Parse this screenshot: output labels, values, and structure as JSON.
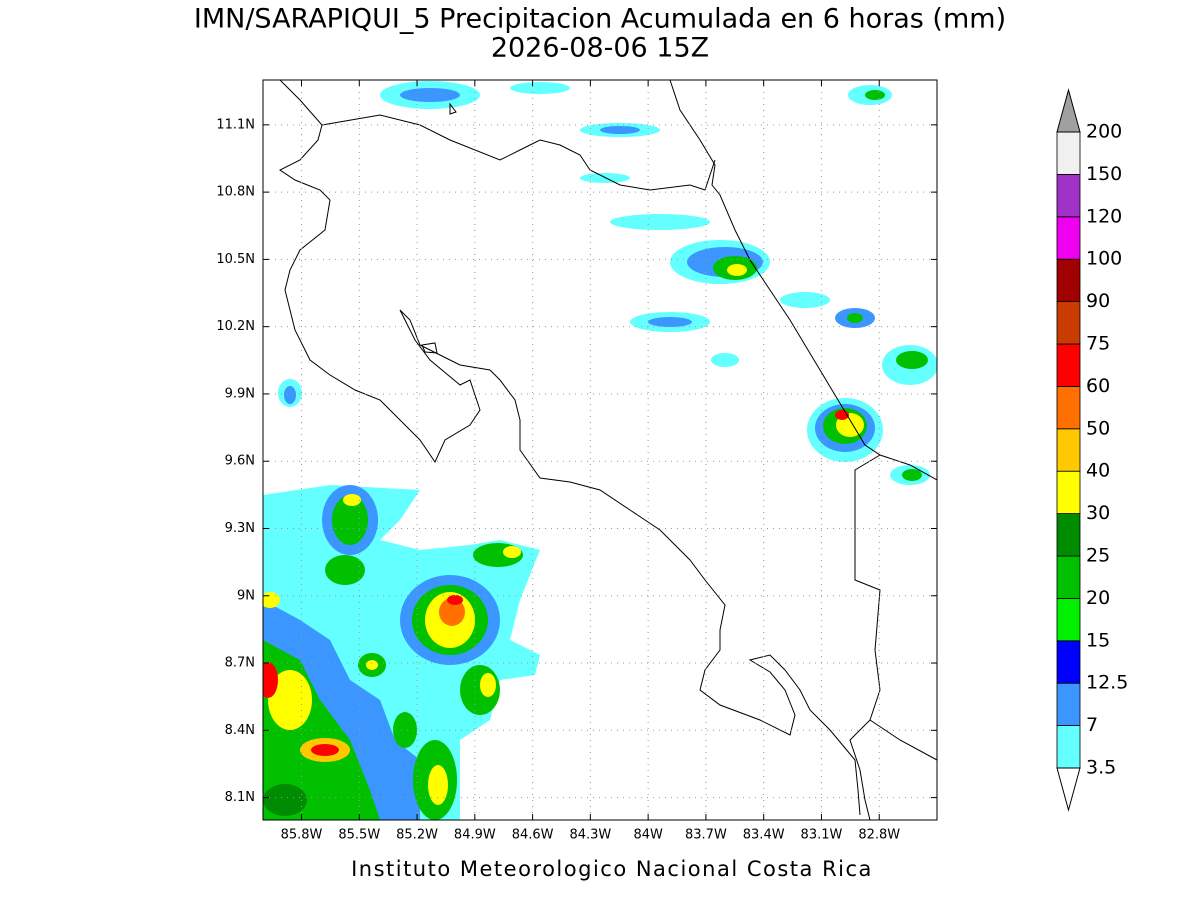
{
  "title": "IMN/SARAPIQUI_5 Precipitacion Acumulada en 6 horas (mm)",
  "subtitle": "2026-08-06 15Z",
  "footer": "Instituto Meteorologico Nacional Costa Rica",
  "map": {
    "xlim": [
      -86.0,
      -82.5
    ],
    "ylim": [
      8.0,
      11.3
    ],
    "grid": true,
    "xticks": [
      {
        "value": -85.8,
        "label": "85.8W"
      },
      {
        "value": -85.5,
        "label": "85.5W"
      },
      {
        "value": -85.2,
        "label": "85.2W"
      },
      {
        "value": -84.9,
        "label": "84.9W"
      },
      {
        "value": -84.6,
        "label": "84.6W"
      },
      {
        "value": -84.3,
        "label": "84.3W"
      },
      {
        "value": -84.0,
        "label": "84W"
      },
      {
        "value": -83.7,
        "label": "83.7W"
      },
      {
        "value": -83.4,
        "label": "83.4W"
      },
      {
        "value": -83.1,
        "label": "83.1W"
      },
      {
        "value": -82.8,
        "label": "82.8W"
      }
    ],
    "yticks": [
      {
        "value": 8.1,
        "label": "8.1N"
      },
      {
        "value": 8.4,
        "label": "8.4N"
      },
      {
        "value": 8.7,
        "label": "8.7N"
      },
      {
        "value": 9.0,
        "label": "9N"
      },
      {
        "value": 9.3,
        "label": "9.3N"
      },
      {
        "value": 9.6,
        "label": "9.6N"
      },
      {
        "value": 9.9,
        "label": "9.9N"
      },
      {
        "value": 10.2,
        "label": "10.2N"
      },
      {
        "value": 10.5,
        "label": "10.5N"
      },
      {
        "value": 10.8,
        "label": "10.8N"
      },
      {
        "value": 11.1,
        "label": "11.1N"
      }
    ]
  },
  "colorbar": {
    "levels": [
      3.5,
      7,
      12.5,
      15,
      20,
      25,
      30,
      40,
      50,
      60,
      75,
      90,
      100,
      120,
      150,
      200
    ],
    "colors": [
      "#64ffff",
      "#3c96ff",
      "#0000ff",
      "#00f000",
      "#00c000",
      "#008c00",
      "#ffff00",
      "#ffc800",
      "#ff7000",
      "#ff0000",
      "#c83c00",
      "#a00000",
      "#f000f0",
      "#a032c8",
      "#f0f0f0"
    ],
    "under_color": "#ffffff",
    "over_color": "#a0a0a0"
  }
}
